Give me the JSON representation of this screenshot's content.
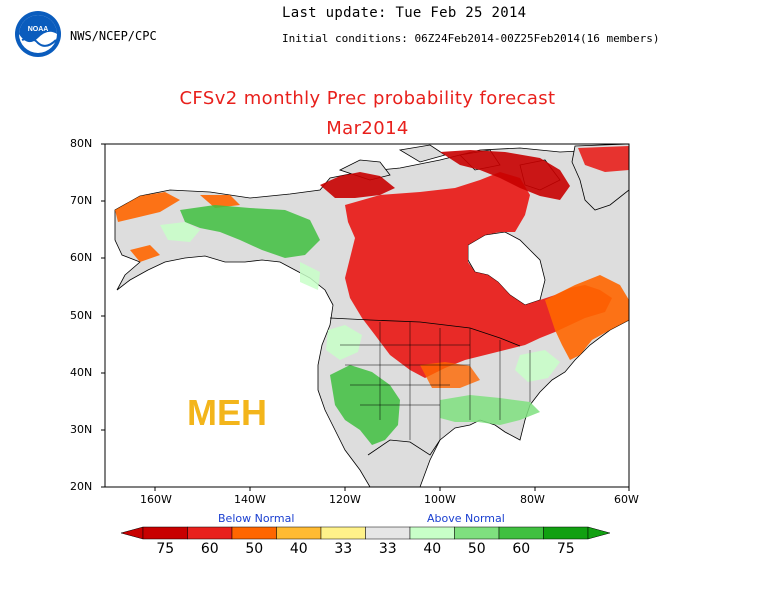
{
  "header": {
    "org": "NWS/NCEP/CPC",
    "last_update": "Last update: Tue Feb 25 2014",
    "initial_conditions": "Initial conditions: 06Z24Feb2014-00Z25Feb2014(16 members)",
    "title": "CFSv2 monthly Prec probability forecast",
    "month": "Mar2014"
  },
  "logo": {
    "text": "NOAA",
    "icon": "noaa-logo-icon"
  },
  "map": {
    "lat_labels": [
      "80N",
      "70N",
      "60N",
      "50N",
      "40N",
      "30N",
      "20N"
    ],
    "lon_labels": [
      "160W",
      "140W",
      "120W",
      "100W",
      "80W",
      "60W"
    ],
    "annotation": "MEH"
  },
  "legend": {
    "below_label": "Below Normal",
    "above_label": "Above Normal",
    "values": [
      "75",
      "60",
      "50",
      "40",
      "33",
      "33",
      "40",
      "50",
      "60",
      "75"
    ],
    "colors": [
      "#c80000",
      "#e8201c",
      "#ff6600",
      "#ffbb33",
      "#fff28a",
      "#e6e6e6",
      "#c8ffc8",
      "#7fe07f",
      "#40c040",
      "#11a011"
    ]
  },
  "colors": {
    "ocean": "#ffffff",
    "land_normal": "#dddddd",
    "title": "#e8201c",
    "annotation": "#f3b51b"
  }
}
